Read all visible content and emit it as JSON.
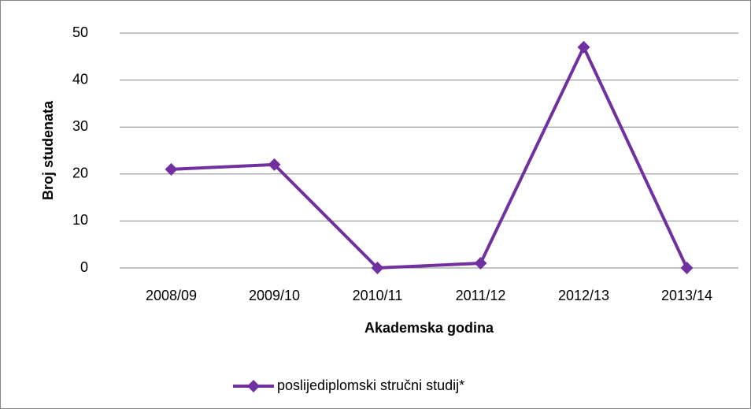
{
  "chart_data": {
    "type": "line",
    "x_label": "Akademska godina",
    "y_label": "Broj studenata",
    "categories": [
      "2008/09",
      "2009/10",
      "2010/11",
      "2011/12",
      "2012/13",
      "2013/14"
    ],
    "series": [
      {
        "name": "poslijediplomski stručni studij*",
        "color": "#7030a0",
        "values": [
          21,
          22,
          0,
          1,
          47,
          0
        ]
      }
    ],
    "ylim": [
      0,
      50
    ],
    "yticks": [
      0,
      10,
      20,
      30,
      40,
      50
    ],
    "grid": true,
    "legend": "bottom"
  }
}
